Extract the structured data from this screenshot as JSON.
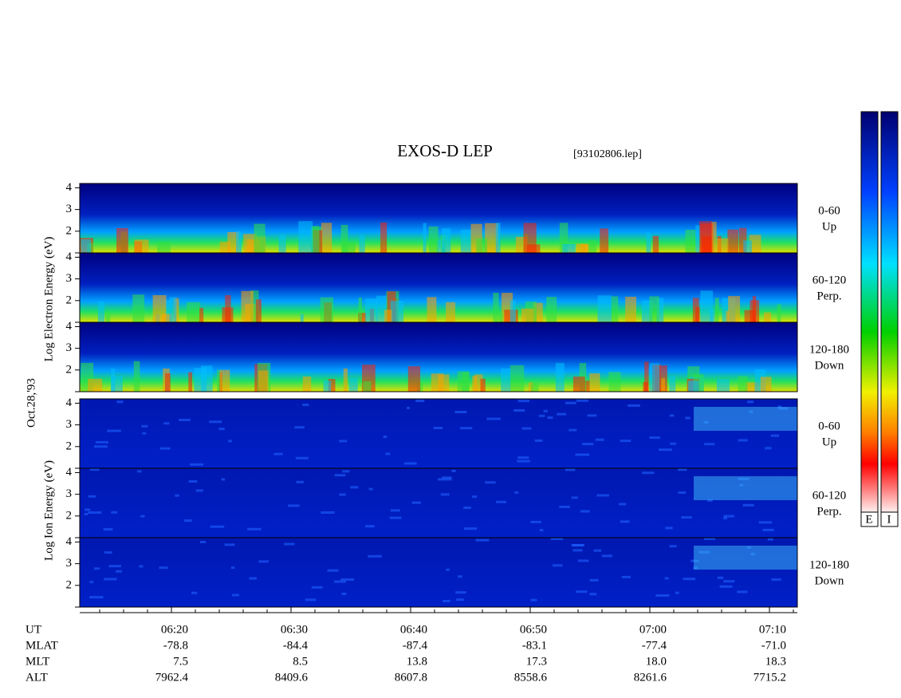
{
  "header": {
    "title": "EXOS-D LEP",
    "file": "[93102806.lep]"
  },
  "panels": {
    "electron_label": "Log Electron Energy (eV)",
    "ion_label": "Log Ion Energy (eV)",
    "date": "Oct.28,'93",
    "ylim": [
      1,
      4.2
    ],
    "yticks": [
      2,
      3,
      4
    ],
    "minor_yticks": [
      1
    ],
    "directions": [
      {
        "range": "0-60",
        "dir": "Up"
      },
      {
        "range": "60-120",
        "dir": "Perp."
      },
      {
        "range": "120-180",
        "dir": "Down"
      }
    ]
  },
  "time_axis": {
    "xlim": [
      12.333,
      72.333
    ],
    "minor_step": 2,
    "ticks": [
      {
        "value": 20,
        "label": "06:20"
      },
      {
        "value": 30,
        "label": "06:30"
      },
      {
        "value": 40,
        "label": "06:40"
      },
      {
        "value": 50,
        "label": "06:50"
      },
      {
        "value": 60,
        "label": "07:00"
      },
      {
        "value": 70,
        "label": "07:10"
      }
    ]
  },
  "rows": [
    {
      "name": "UT"
    },
    {
      "name": "MLAT",
      "values": [
        "-78.8",
        "-84.4",
        "-87.4",
        "-83.1",
        "-77.4",
        "-71.0"
      ]
    },
    {
      "name": "MLT",
      "values": [
        "7.5",
        "8.5",
        "13.8",
        "17.3",
        "18.0",
        "18.3"
      ]
    },
    {
      "name": "ALT",
      "values": [
        "7962.4",
        "8409.6",
        "8607.8",
        "8558.6",
        "8261.6",
        "7715.2"
      ]
    }
  ],
  "colorbar": {
    "labels": [
      "E",
      "I"
    ]
  }
}
